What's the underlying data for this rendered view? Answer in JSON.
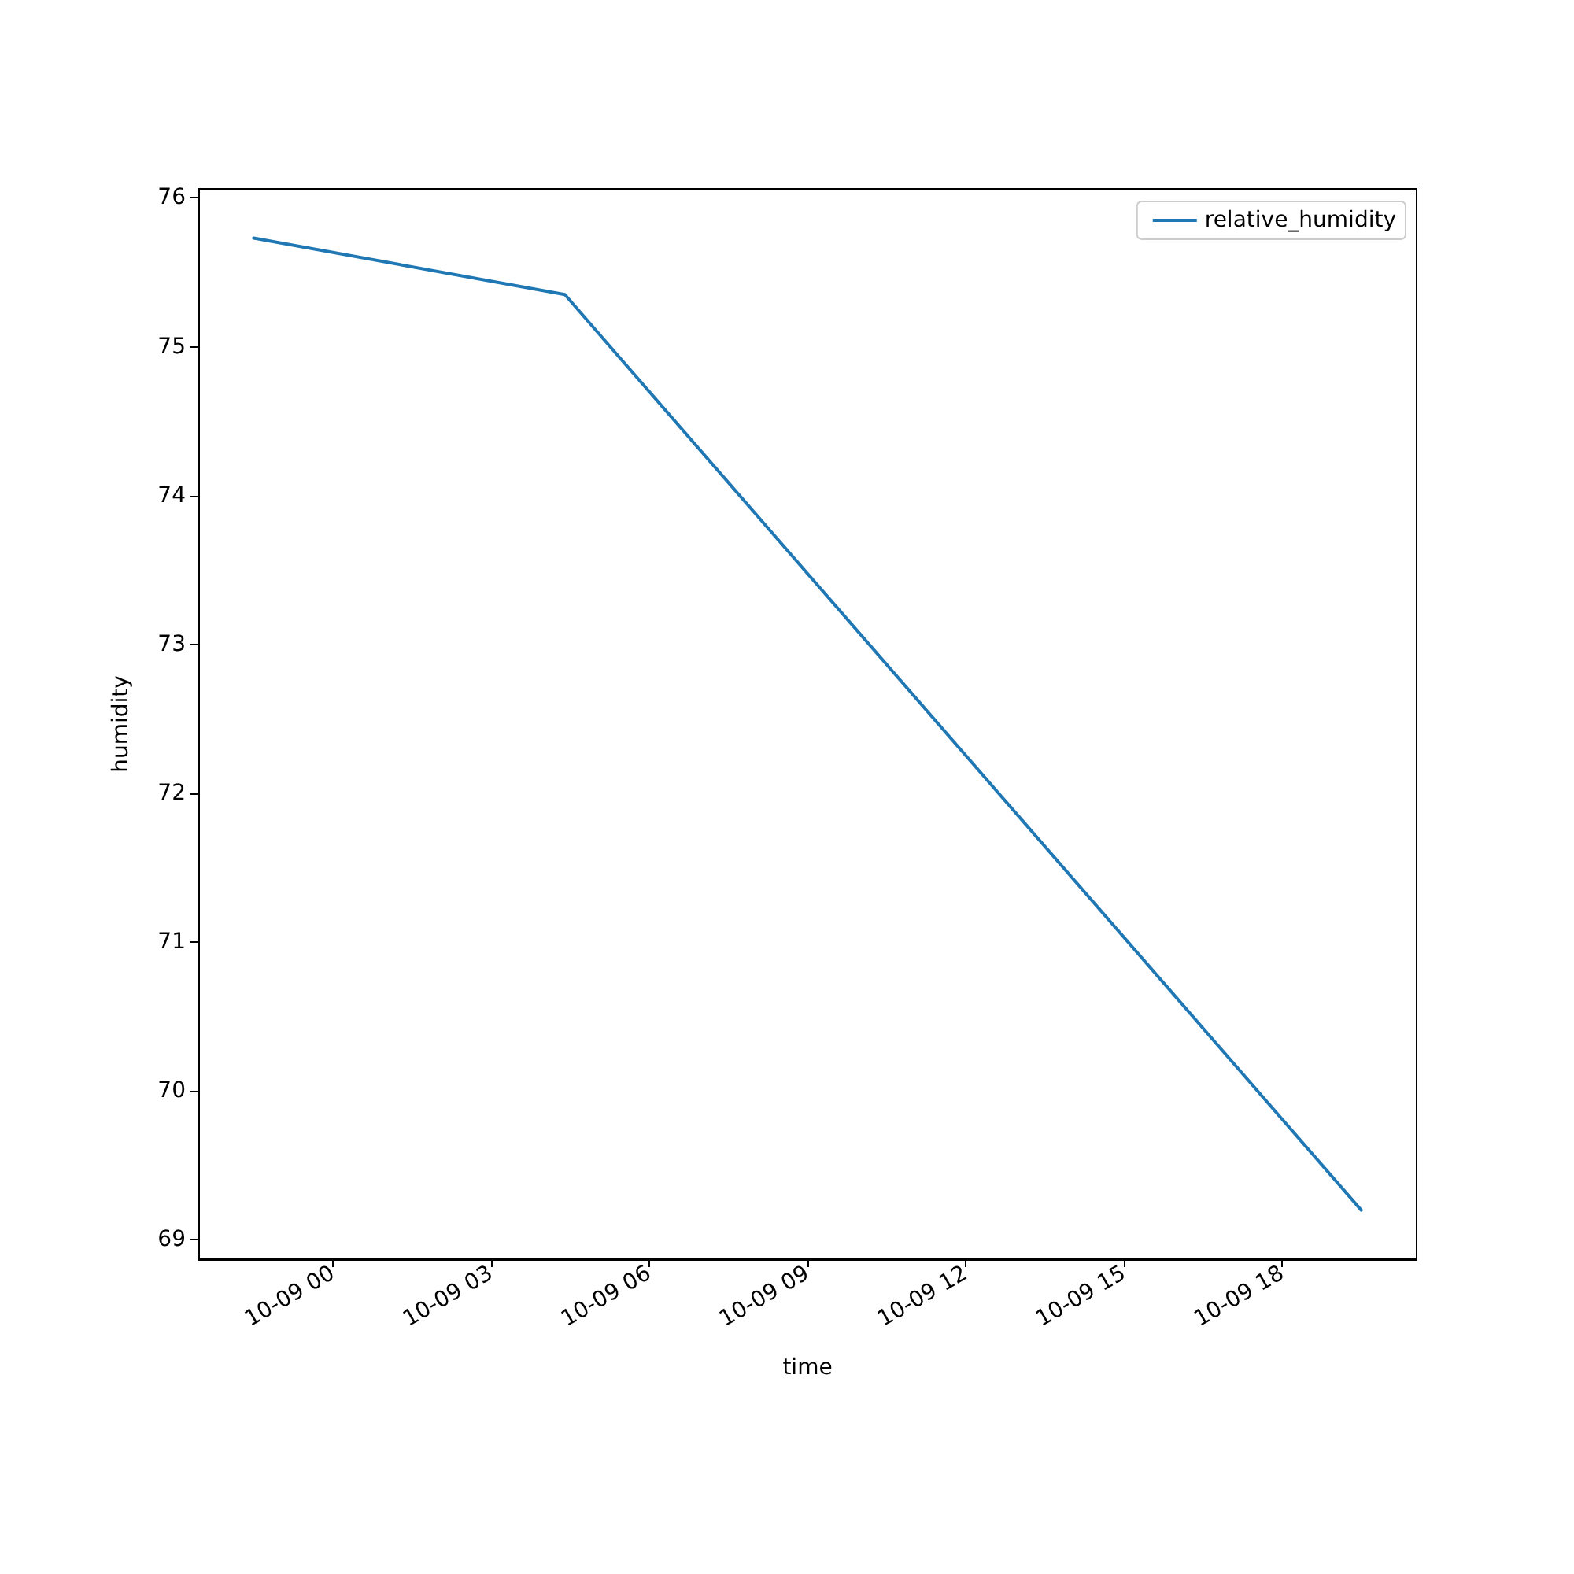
{
  "chart_data": {
    "type": "line",
    "xlabel": "time",
    "ylabel": "humidity",
    "x": [
      "--10-08T22:30",
      "--10-09T04:24",
      "--10-09T19:30"
    ],
    "series": [
      {
        "name": "relative_humidity",
        "color": "#1f77b4",
        "values": [
          75.73,
          75.35,
          69.2
        ]
      }
    ],
    "xlim": [
      "--10-08T21:27",
      "--10-09T20:33"
    ],
    "xticks": [
      {
        "value": "--10-09T00:00",
        "label": "10-09 00"
      },
      {
        "value": "--10-09T03:00",
        "label": "10-09 03"
      },
      {
        "value": "--10-09T06:00",
        "label": "10-09 06"
      },
      {
        "value": "--10-09T09:00",
        "label": "10-09 09"
      },
      {
        "value": "--10-09T12:00",
        "label": "10-09 12"
      },
      {
        "value": "--10-09T15:00",
        "label": "10-09 15"
      },
      {
        "value": "--10-09T18:00",
        "label": "10-09 18"
      }
    ],
    "ylim": [
      68.87,
      76.06
    ],
    "yticks": [
      69,
      70,
      71,
      72,
      73,
      74,
      75,
      76
    ],
    "grid": false,
    "legend": "top right",
    "marker": "none",
    "line_style": "solid"
  }
}
